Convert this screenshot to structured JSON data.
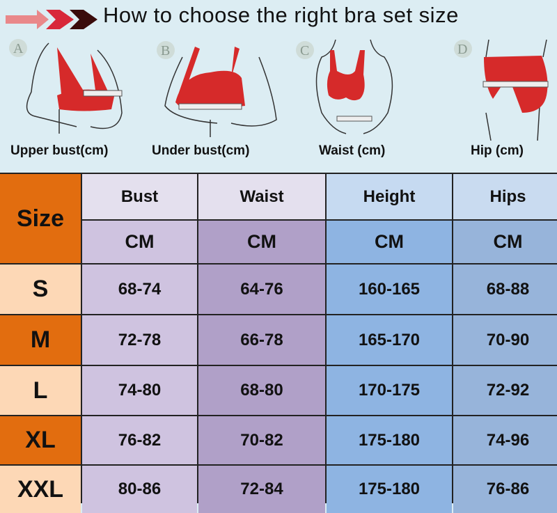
{
  "header": {
    "title": "How to choose the right bra set size"
  },
  "figures": [
    {
      "letter": "A",
      "label": "Upper bust(cm)"
    },
    {
      "letter": "B",
      "label": "Under bust(cm)"
    },
    {
      "letter": "C",
      "label": "Waist (cm)"
    },
    {
      "letter": "D",
      "label": "Hip (cm)"
    }
  ],
  "table": {
    "size_header": "Size",
    "columns": [
      {
        "name": "Bust",
        "unit": "CM"
      },
      {
        "name": "Waist",
        "unit": "CM"
      },
      {
        "name": "Height",
        "unit": "CM"
      },
      {
        "name": "Hips",
        "unit": "CM"
      }
    ],
    "rows": [
      {
        "size": "S",
        "values": [
          "68-74",
          "64-76",
          "160-165",
          "68-88"
        ]
      },
      {
        "size": "M",
        "values": [
          "72-78",
          "66-78",
          "165-170",
          "70-90"
        ]
      },
      {
        "size": "L",
        "values": [
          "74-80",
          "68-80",
          "170-175",
          "72-92"
        ]
      },
      {
        "size": "XL",
        "values": [
          "76-82",
          "70-82",
          "175-180",
          "74-96"
        ]
      },
      {
        "size": "XXL",
        "values": [
          "80-86",
          "72-84",
          "175-180",
          "76-86"
        ]
      }
    ]
  },
  "colors": {
    "background": "#dcedf3",
    "size_column": "#e26d0f",
    "garment": "#d62a2a"
  }
}
